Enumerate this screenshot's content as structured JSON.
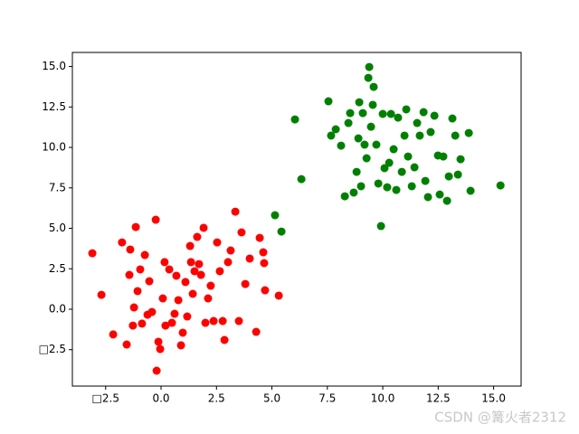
{
  "chart_data": {
    "type": "scatter",
    "xlim": [
      -4.0,
      16.24
    ],
    "ylim": [
      -4.75,
      15.87
    ],
    "xticks": [
      {
        "value": -2.5,
        "label": "□2.5"
      },
      {
        "value": 0,
        "label": "0.0"
      },
      2.5,
      {
        "value": 5,
        "label": "5.0"
      },
      7.5,
      {
        "value": 10,
        "label": "10.0"
      },
      12.5,
      {
        "value": 15,
        "label": "15.0"
      }
    ],
    "yticks": [
      {
        "value": -2.5,
        "label": "□2.5"
      },
      {
        "value": 0,
        "label": "0.0"
      },
      2.5,
      {
        "value": 5,
        "label": "5.0"
      },
      7.5,
      {
        "value": 10,
        "label": "10.0"
      },
      12.5,
      {
        "value": 15,
        "label": "15.0"
      }
    ],
    "series": [
      {
        "color": "#ff0000",
        "x": [
          -3.1,
          -2.69,
          -2.16,
          -1.76,
          -1.55,
          -1.43,
          -1.39,
          -1.14,
          -1.22,
          -1.27,
          -1.06,
          -0.94,
          -0.86,
          -0.73,
          -0.61,
          -0.53,
          -0.41,
          -0.24,
          -0.2,
          -0.12,
          -0.04,
          0.08,
          0.16,
          0.2,
          0.37,
          0.49,
          0.61,
          0.69,
          0.78,
          0.9,
          0.98,
          1.1,
          1.18,
          1.31,
          1.35,
          1.43,
          1.51,
          1.63,
          1.71,
          1.8,
          1.92,
          2.0,
          2.12,
          2.24,
          2.37,
          2.53,
          2.65,
          2.78,
          2.86,
          3.02,
          3.14,
          3.35,
          3.51,
          3.63,
          3.8,
          4.0,
          4.29,
          4.45,
          4.61,
          4.65,
          4.69,
          5.31
        ],
        "values": [
          3.46,
          0.89,
          -1.56,
          4.13,
          -2.18,
          2.12,
          3.69,
          5.08,
          0.11,
          -1.01,
          1.12,
          2.46,
          -0.89,
          3.35,
          -0.34,
          1.73,
          -0.17,
          5.53,
          -3.8,
          -2.01,
          -2.46,
          0.67,
          2.91,
          -1.01,
          2.46,
          -0.84,
          -0.28,
          2.07,
          0.56,
          -2.23,
          -1.45,
          1.68,
          -0.45,
          3.91,
          2.91,
          0.95,
          2.35,
          4.47,
          2.79,
          2.12,
          5.03,
          -0.84,
          0.67,
          1.45,
          -0.73,
          4.13,
          2.35,
          -0.73,
          -1.9,
          2.91,
          3.63,
          6.03,
          -0.73,
          4.75,
          1.56,
          3.13,
          -1.4,
          4.41,
          3.52,
          2.85,
          1.17,
          0.84
        ]
      },
      {
        "color": "#008000",
        "x": [
          5.14,
          5.43,
          6.04,
          6.33,
          7.55,
          7.67,
          7.88,
          8.12,
          8.29,
          8.45,
          8.53,
          8.69,
          8.82,
          8.9,
          8.94,
          9.02,
          9.1,
          9.18,
          9.27,
          9.39,
          9.35,
          9.47,
          9.55,
          9.59,
          9.71,
          9.8,
          9.92,
          10.0,
          10.08,
          10.2,
          10.29,
          10.37,
          10.49,
          10.61,
          10.69,
          10.86,
          10.98,
          11.06,
          11.14,
          11.31,
          11.43,
          11.55,
          11.67,
          11.84,
          11.92,
          12.04,
          12.16,
          12.33,
          12.49,
          12.57,
          12.73,
          12.9,
          12.98,
          13.14,
          13.27,
          13.39,
          13.51,
          13.88,
          13.96,
          15.31
        ],
        "values": [
          5.81,
          4.8,
          11.73,
          8.04,
          12.85,
          10.73,
          11.12,
          10.11,
          6.98,
          11.51,
          12.12,
          7.21,
          8.49,
          10.56,
          12.79,
          7.6,
          12.12,
          10.17,
          9.33,
          14.97,
          14.3,
          11.28,
          12.63,
          13.74,
          10.17,
          7.77,
          5.14,
          12.07,
          8.72,
          7.54,
          9.05,
          12.07,
          9.89,
          7.37,
          11.84,
          8.49,
          10.73,
          12.35,
          9.44,
          7.6,
          8.77,
          11.51,
          10.73,
          12.18,
          7.93,
          6.93,
          10.95,
          11.96,
          9.5,
          7.09,
          9.44,
          6.7,
          8.21,
          11.79,
          10.73,
          8.32,
          9.27,
          10.89,
          7.32,
          7.65
        ]
      }
    ]
  },
  "watermark": "CSDN @篝火者2312"
}
